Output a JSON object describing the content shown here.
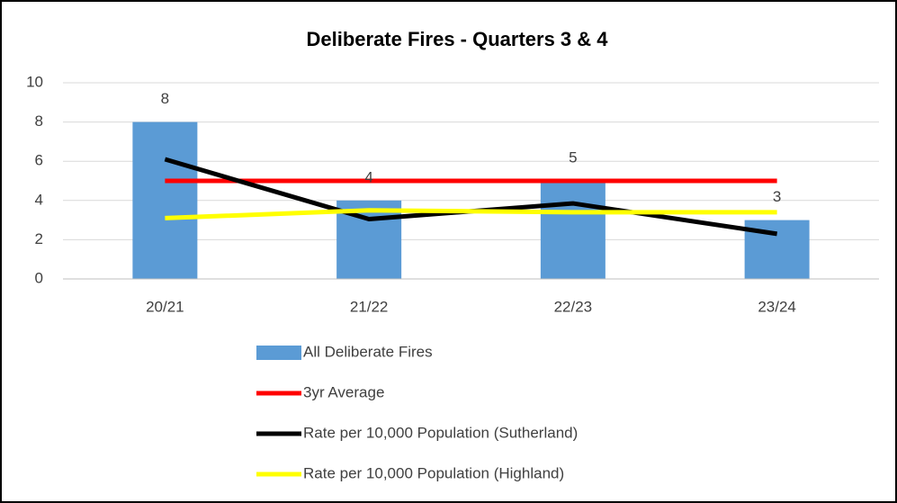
{
  "chart_data": {
    "type": "bar",
    "title": "Deliberate Fires - Quarters 3 & 4",
    "categories": [
      "20/21",
      "21/22",
      "22/23",
      "23/24"
    ],
    "series": [
      {
        "name": "All Deliberate Fires",
        "type": "bar",
        "color": "#5b9bd5",
        "values": [
          8,
          4,
          5,
          3
        ]
      },
      {
        "name": "3yr Average",
        "type": "line",
        "color": "#ff0000",
        "values": [
          5,
          5,
          5,
          5
        ]
      },
      {
        "name": "Rate per 10,000 Population (Sutherland)",
        "type": "line",
        "color": "#000000",
        "values": [
          6.1,
          3.05,
          3.85,
          2.3
        ]
      },
      {
        "name": "Rate per 10,000 Population (Highland)",
        "type": "line",
        "color": "#ffff00",
        "values": [
          3.1,
          3.5,
          3.4,
          3.4
        ]
      }
    ],
    "ylim": [
      0,
      10
    ],
    "yticks": [
      0,
      2,
      4,
      6,
      8,
      10
    ],
    "grid": true,
    "legend": "bottom"
  }
}
